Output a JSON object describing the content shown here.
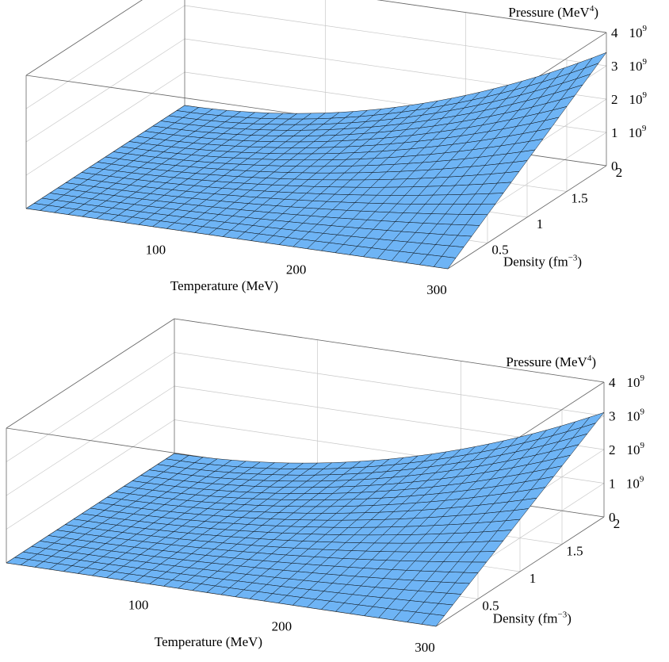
{
  "chart_data": [
    {
      "type": "surface3d",
      "title": "",
      "xlabel": "Temperature (MeV)",
      "ylabel": "Density (fm",
      "ylabel_sup": "−3",
      "ylabel_close": ")",
      "zlabel": "Pressure (MeV",
      "zlabel_sup": "4",
      "zlabel_close": ")",
      "x_ticks": [
        "100",
        "200",
        "300"
      ],
      "y_ticks": [
        "0.5",
        "1",
        "1.5",
        "2"
      ],
      "z_ticks": [
        {
          "mantissa": "0",
          "exp": ""
        },
        {
          "mantissa": "1",
          "exp": "9"
        },
        {
          "mantissa": "2",
          "exp": "9"
        },
        {
          "mantissa": "3",
          "exp": "9"
        },
        {
          "mantissa": "4",
          "exp": "9"
        }
      ],
      "x_range": [
        0,
        300
      ],
      "y_range": [
        0,
        2
      ],
      "z_range": [
        0,
        4000000000
      ],
      "surface_color": "#6eb4f5",
      "mesh_color": "#000000",
      "grid": true,
      "corner_pressure_x300_y2": 3400000000
    },
    {
      "type": "surface3d",
      "title": "",
      "xlabel": "Temperature (MeV)",
      "ylabel": "Density (fm",
      "ylabel_sup": "−3",
      "ylabel_close": ")",
      "zlabel": "Pressure (MeV",
      "zlabel_sup": "4",
      "zlabel_close": ")",
      "x_ticks": [
        "100",
        "200",
        "300"
      ],
      "y_ticks": [
        "0.5",
        "1",
        "1.5",
        "2"
      ],
      "z_ticks": [
        {
          "mantissa": "0",
          "exp": ""
        },
        {
          "mantissa": "1",
          "exp": "9"
        },
        {
          "mantissa": "2",
          "exp": "9"
        },
        {
          "mantissa": "3",
          "exp": "9"
        },
        {
          "mantissa": "4",
          "exp": "9"
        }
      ],
      "x_range": [
        0,
        300
      ],
      "y_range": [
        0,
        2
      ],
      "z_range": [
        0,
        4000000000
      ],
      "surface_color": "#6eb4f5",
      "mesh_color": "#000000",
      "grid": true,
      "corner_pressure_x300_y2": 3100000000
    }
  ]
}
